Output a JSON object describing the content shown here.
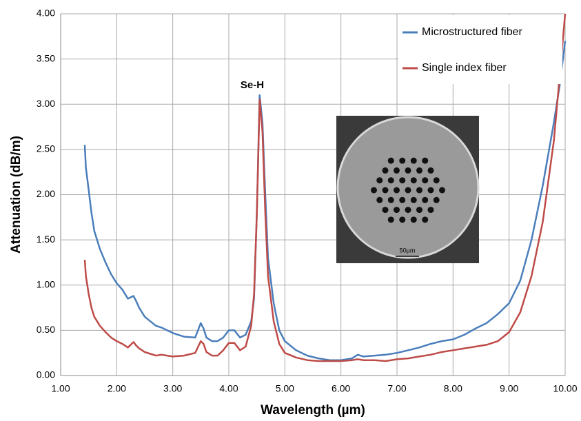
{
  "chart_data": {
    "type": "line",
    "x_label": "Wavelength (µm)",
    "y_label": "Attenuation (dB/m)",
    "annotation": "Se-H",
    "inset_scale_label": "50µm",
    "x": [
      1.43,
      1.45,
      1.5,
      1.55,
      1.6,
      1.7,
      1.8,
      1.9,
      2.0,
      2.1,
      2.2,
      2.3,
      2.35,
      2.4,
      2.5,
      2.6,
      2.7,
      2.8,
      2.9,
      3.0,
      3.2,
      3.4,
      3.5,
      3.55,
      3.6,
      3.7,
      3.8,
      3.9,
      4.0,
      4.1,
      4.2,
      4.3,
      4.4,
      4.45,
      4.5,
      4.55,
      4.6,
      4.65,
      4.7,
      4.8,
      4.9,
      5.0,
      5.2,
      5.4,
      5.6,
      5.8,
      6.0,
      6.2,
      6.3,
      6.4,
      6.6,
      6.8,
      7.0,
      7.2,
      7.4,
      7.6,
      7.8,
      8.0,
      8.2,
      8.4,
      8.6,
      8.8,
      9.0,
      9.2,
      9.4,
      9.6,
      9.8,
      9.9,
      10.0
    ],
    "series": [
      {
        "name": "Microstructured fiber",
        "color": "#4a7ebb",
        "values": [
          2.55,
          2.3,
          2.05,
          1.8,
          1.6,
          1.4,
          1.25,
          1.12,
          1.02,
          0.95,
          0.85,
          0.88,
          0.82,
          0.75,
          0.65,
          0.6,
          0.55,
          0.53,
          0.5,
          0.47,
          0.43,
          0.42,
          0.58,
          0.52,
          0.42,
          0.38,
          0.38,
          0.42,
          0.5,
          0.5,
          0.42,
          0.45,
          0.6,
          0.85,
          1.8,
          3.1,
          2.8,
          2.0,
          1.3,
          0.8,
          0.5,
          0.38,
          0.28,
          0.22,
          0.19,
          0.17,
          0.17,
          0.19,
          0.23,
          0.21,
          0.22,
          0.23,
          0.25,
          0.28,
          0.31,
          0.35,
          0.38,
          0.4,
          0.45,
          0.52,
          0.58,
          0.68,
          0.8,
          1.05,
          1.5,
          2.1,
          2.8,
          3.2,
          3.7
        ]
      },
      {
        "name": "Single index fiber",
        "color": "#be4b48",
        "values": [
          1.28,
          1.1,
          0.9,
          0.75,
          0.65,
          0.55,
          0.48,
          0.42,
          0.38,
          0.35,
          0.31,
          0.37,
          0.33,
          0.3,
          0.26,
          0.24,
          0.22,
          0.23,
          0.22,
          0.21,
          0.22,
          0.25,
          0.38,
          0.35,
          0.26,
          0.22,
          0.22,
          0.28,
          0.36,
          0.36,
          0.28,
          0.32,
          0.55,
          0.9,
          1.8,
          3.05,
          2.7,
          1.8,
          1.1,
          0.6,
          0.35,
          0.25,
          0.2,
          0.17,
          0.16,
          0.16,
          0.16,
          0.17,
          0.18,
          0.17,
          0.17,
          0.16,
          0.18,
          0.19,
          0.21,
          0.23,
          0.26,
          0.28,
          0.3,
          0.32,
          0.34,
          0.38,
          0.48,
          0.7,
          1.1,
          1.7,
          2.6,
          3.3,
          4.0
        ]
      }
    ],
    "xlim": [
      1,
      10
    ],
    "xticks": [
      {
        "value": 1,
        "label": "1.00"
      },
      {
        "value": 2,
        "label": "2.00"
      },
      {
        "value": 3,
        "label": "3.00"
      },
      {
        "value": 4,
        "label": "4.00"
      },
      {
        "value": 5,
        "label": "5.00"
      },
      {
        "value": 6,
        "label": "6.00"
      },
      {
        "value": 7,
        "label": "7.00"
      },
      {
        "value": 8,
        "label": "8.00"
      },
      {
        "value": 9,
        "label": "9.00"
      },
      {
        "value": 10,
        "label": "10.00"
      }
    ],
    "ylim": [
      0,
      4
    ],
    "yticks": [
      {
        "value": 0,
        "label": "0.00"
      },
      {
        "value": 0.5,
        "label": "0.50"
      },
      {
        "value": 1,
        "label": "1.00"
      },
      {
        "value": 1.5,
        "label": "1.50"
      },
      {
        "value": 2,
        "label": "2.00"
      },
      {
        "value": 2.5,
        "label": "2.50"
      },
      {
        "value": 3,
        "label": "3.00"
      },
      {
        "value": 3.5,
        "label": "3.50"
      },
      {
        "value": 4,
        "label": "4.00"
      }
    ],
    "grid": true,
    "legend": "top-right"
  }
}
